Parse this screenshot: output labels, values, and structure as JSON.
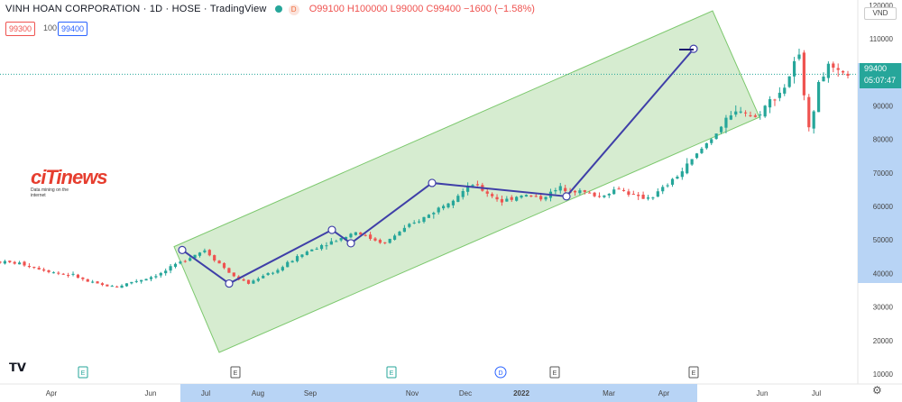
{
  "header": {
    "symbol": "VINH HOAN CORPORATION · 1D · HOSE · TradingView",
    "badge": "D",
    "ohlc": "O99100 H100000 L99000 C99400 −1600 (−1.58%)"
  },
  "quote": {
    "bid": "99300",
    "qty": "100",
    "ask": "99400"
  },
  "currency": "VND",
  "last_price": {
    "value": "99400",
    "countdown": "05:07:47"
  },
  "watermark": {
    "word_a": "ciTi",
    "word_b": "news",
    "tagline": "Data mining on the internet"
  },
  "colors": {
    "up": "#26a69a",
    "down": "#ef5350",
    "channel_fill": "#c8e6c0",
    "channel_stroke": "#7cc86d",
    "trend": "#3f3fa8",
    "axis_highlight": "#b8d4f5"
  },
  "chart_data": {
    "type": "candlestick",
    "y_axis": {
      "ticks": [
        10000,
        20000,
        30000,
        40000,
        50000,
        60000,
        70000,
        80000,
        90000,
        100000,
        110000,
        120000
      ],
      "range": [
        8000,
        121000
      ]
    },
    "x_axis": {
      "labels": [
        "Apr",
        "Jun",
        "Jul",
        "Aug",
        "Sep",
        "Nov",
        "Dec",
        "2022",
        "Mar",
        "Apr",
        "Jun",
        "Jul"
      ]
    },
    "event_markers": [
      "E",
      "E",
      "E",
      "D",
      "E",
      "E"
    ],
    "last_price": 99400,
    "trend_points": [
      47000,
      37000,
      53000,
      49000,
      67000,
      63000,
      107000
    ],
    "channel": {
      "upper_start": 48000,
      "upper_end": 87000,
      "lower_start": 17000,
      "lower_end": 85000
    },
    "price_path": [
      [
        0,
        43500
      ],
      [
        4,
        43000
      ],
      [
        8,
        41500
      ],
      [
        12,
        40000
      ],
      [
        15,
        39500
      ],
      [
        18,
        37500
      ],
      [
        21,
        36500
      ],
      [
        24,
        36000
      ],
      [
        27,
        37500
      ],
      [
        30,
        38500
      ],
      [
        33,
        40000
      ],
      [
        36,
        42500
      ],
      [
        39,
        45000
      ],
      [
        42,
        47000
      ],
      [
        45,
        43000
      ],
      [
        48,
        39000
      ],
      [
        51,
        37000
      ],
      [
        54,
        39500
      ],
      [
        57,
        41000
      ],
      [
        60,
        44000
      ],
      [
        63,
        46500
      ],
      [
        66,
        48500
      ],
      [
        70,
        50500
      ],
      [
        73,
        52500
      ],
      [
        76,
        50500
      ],
      [
        79,
        49000
      ],
      [
        82,
        52500
      ],
      [
        85,
        55000
      ],
      [
        88,
        57500
      ],
      [
        91,
        60500
      ],
      [
        94,
        63500
      ],
      [
        97,
        66500
      ],
      [
        100,
        64000
      ],
      [
        103,
        61500
      ],
      [
        107,
        63500
      ],
      [
        111,
        62500
      ],
      [
        115,
        65500
      ],
      [
        119,
        64500
      ],
      [
        123,
        63000
      ],
      [
        127,
        65500
      ],
      [
        131,
        62500
      ],
      [
        134,
        63000
      ],
      [
        137,
        66500
      ],
      [
        140,
        70500
      ],
      [
        143,
        75500
      ],
      [
        146,
        80500
      ],
      [
        149,
        85500
      ],
      [
        152,
        89000
      ],
      [
        155,
        86500
      ],
      [
        158,
        91500
      ],
      [
        161,
        95500
      ],
      [
        163,
        102500
      ],
      [
        164,
        104500
      ],
      [
        165,
        94000
      ],
      [
        166,
        84500
      ],
      [
        167,
        87500
      ],
      [
        168,
        97500
      ],
      [
        170,
        101500
      ],
      [
        172,
        99500
      ],
      [
        174,
        99400
      ]
    ]
  }
}
